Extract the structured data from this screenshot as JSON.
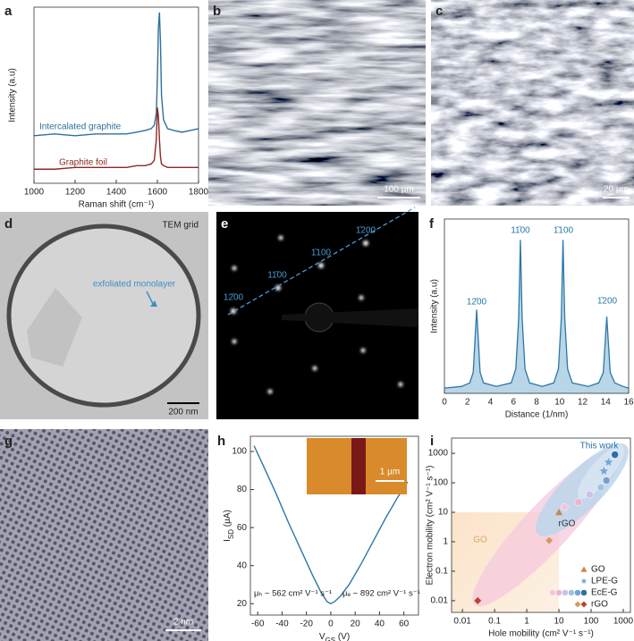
{
  "panel_labels": [
    "a",
    "b",
    "c",
    "d",
    "e",
    "f",
    "g",
    "h",
    "i"
  ],
  "images": {
    "b": {
      "scale_bar": "100 µm"
    },
    "c": {
      "scale_bar": "20 µm"
    },
    "d": {
      "label": "TEM grid",
      "annotation": "exfoliated monolayer",
      "scale_bar": "200 nm"
    },
    "e": {
      "spots": [
        "12̄00",
        "11̄00",
        "1̄100",
        "1̄200"
      ]
    },
    "g": {
      "scale_bar": "2 nm"
    },
    "h_inset": {
      "scale_bar": "1 µm"
    }
  },
  "chart_data": [
    {
      "type": "line",
      "xlabel": "Raman shift (cm⁻¹)",
      "ylabel": "Intensity (a.u)",
      "x": [
        1000,
        1100,
        1200,
        1300,
        1400,
        1450,
        1500,
        1540,
        1570,
        1585,
        1595,
        1600,
        1605,
        1610,
        1615,
        1620,
        1630,
        1650,
        1680,
        1720,
        1760,
        1800
      ],
      "xlim": [
        1000,
        1800
      ],
      "xticks": [
        1000,
        1200,
        1400,
        1600,
        1800
      ],
      "ylim": [
        0,
        100
      ],
      "series": [
        {
          "name": "Intercalated graphite",
          "color": "#2f6f9a",
          "values": [
            27,
            28,
            27,
            28,
            28,
            28,
            29,
            30,
            31,
            33,
            40,
            60,
            88,
            97,
            80,
            50,
            36,
            31,
            30,
            29,
            30,
            31
          ]
        },
        {
          "name": "Graphite foil",
          "color": "#8b2a22",
          "values": [
            8,
            8,
            9,
            9,
            9,
            9,
            10,
            10,
            11,
            13,
            25,
            43,
            38,
            25,
            15,
            11,
            10,
            9,
            9,
            9,
            9,
            9
          ]
        }
      ]
    },
    {
      "type": "area",
      "xlabel": "Distance (1/nm)",
      "ylabel": "Intensity (a.u)",
      "x": [
        0,
        1.5,
        2.2,
        2.5,
        2.65,
        2.8,
        2.95,
        3.1,
        3.4,
        4.5,
        5.8,
        6.2,
        6.45,
        6.6,
        6.75,
        7.0,
        7.4,
        8.5,
        9.5,
        9.9,
        10.15,
        10.3,
        10.45,
        10.7,
        11.1,
        12.5,
        13.4,
        13.8,
        13.95,
        14.1,
        14.25,
        14.4,
        14.8,
        15.5,
        16
      ],
      "xlim": [
        0,
        16
      ],
      "xticks": [
        0,
        2,
        4,
        6,
        8,
        10,
        12,
        14,
        16
      ],
      "ylim": [
        0,
        100
      ],
      "series": [
        {
          "color": "#2a78a8",
          "fill": "#b9d5e8",
          "values": [
            3,
            4,
            6,
            12,
            30,
            48,
            30,
            12,
            6,
            4,
            6,
            14,
            43,
            88,
            43,
            14,
            6,
            4,
            6,
            14,
            43,
            88,
            43,
            14,
            6,
            4,
            6,
            12,
            28,
            44,
            28,
            12,
            6,
            4,
            3
          ]
        }
      ],
      "annotations": [
        "12̄00",
        "11̄00",
        "1̄100",
        "1̄200"
      ]
    },
    {
      "type": "line",
      "xlabel": {
        "symbol": "V",
        "subscript": "GS",
        "unit": " (V)"
      },
      "ylabel": {
        "symbol": "I",
        "subscript": "SD",
        "unit": " (µA)"
      },
      "x": [
        -63,
        -55,
        -45,
        -35,
        -25,
        -15,
        -8,
        -3,
        0,
        3,
        8,
        15,
        25,
        35,
        45,
        55,
        63
      ],
      "xlim": [
        -66,
        72
      ],
      "xticks": [
        -60,
        -40,
        -20,
        0,
        20,
        40,
        60
      ],
      "ylim": [
        14,
        108
      ],
      "yticks": [
        20,
        40,
        60,
        80,
        100
      ],
      "series": [
        {
          "color": "#2a78a8",
          "values": [
            103,
            92,
            78,
            63,
            49,
            35,
            26,
            21,
            20,
            21,
            24,
            30,
            41,
            53,
            65,
            76,
            84
          ]
        }
      ],
      "annotations": [
        "μₕ ~ 562 cm² V⁻¹ s⁻¹",
        "μₑ ~ 892 cm² V⁻¹ s⁻¹"
      ]
    },
    {
      "type": "scatter",
      "xlabel": "Hole mobility (cm² V⁻¹ s⁻¹)",
      "ylabel": "Electron mobility (cm² V⁻¹ s⁻¹)",
      "xlog": true,
      "ylog": true,
      "xlim": [
        0.0046,
        1670
      ],
      "xticks": [
        0.01,
        0.1,
        1,
        10,
        100,
        1000
      ],
      "ylim": [
        0.004,
        3300
      ],
      "yticks": [
        0.01,
        0.1,
        1,
        10,
        100,
        1000
      ],
      "legend": "lower right",
      "series": [
        {
          "name": "GO",
          "marker": "triangle",
          "color": "#c8874a",
          "x": [
            10
          ],
          "y": [
            10
          ]
        },
        {
          "name": "LPE-G",
          "marker": "star",
          "color": "#6fa8d6",
          "x": [
            250,
            350
          ],
          "y": [
            250,
            500
          ]
        },
        {
          "name": "EcE-G",
          "marker": "circle",
          "colors": [
            "#f4c6d4",
            "#e9b5cf",
            "#c9c2e3",
            "#9ec3e4",
            "#6fa3d2",
            "#2f6fa8"
          ],
          "x": [
            15,
            40,
            90,
            200,
            300,
            550
          ],
          "y": [
            15,
            22,
            40,
            70,
            120,
            900
          ]
        },
        {
          "name": "rGO",
          "marker": "diamond",
          "colors": [
            "#d59a63",
            "#b8462a"
          ],
          "x": [
            5,
            0.03
          ],
          "y": [
            1.1,
            0.01
          ]
        }
      ],
      "annotations": [
        "GO",
        "rGO",
        "This work"
      ]
    }
  ]
}
